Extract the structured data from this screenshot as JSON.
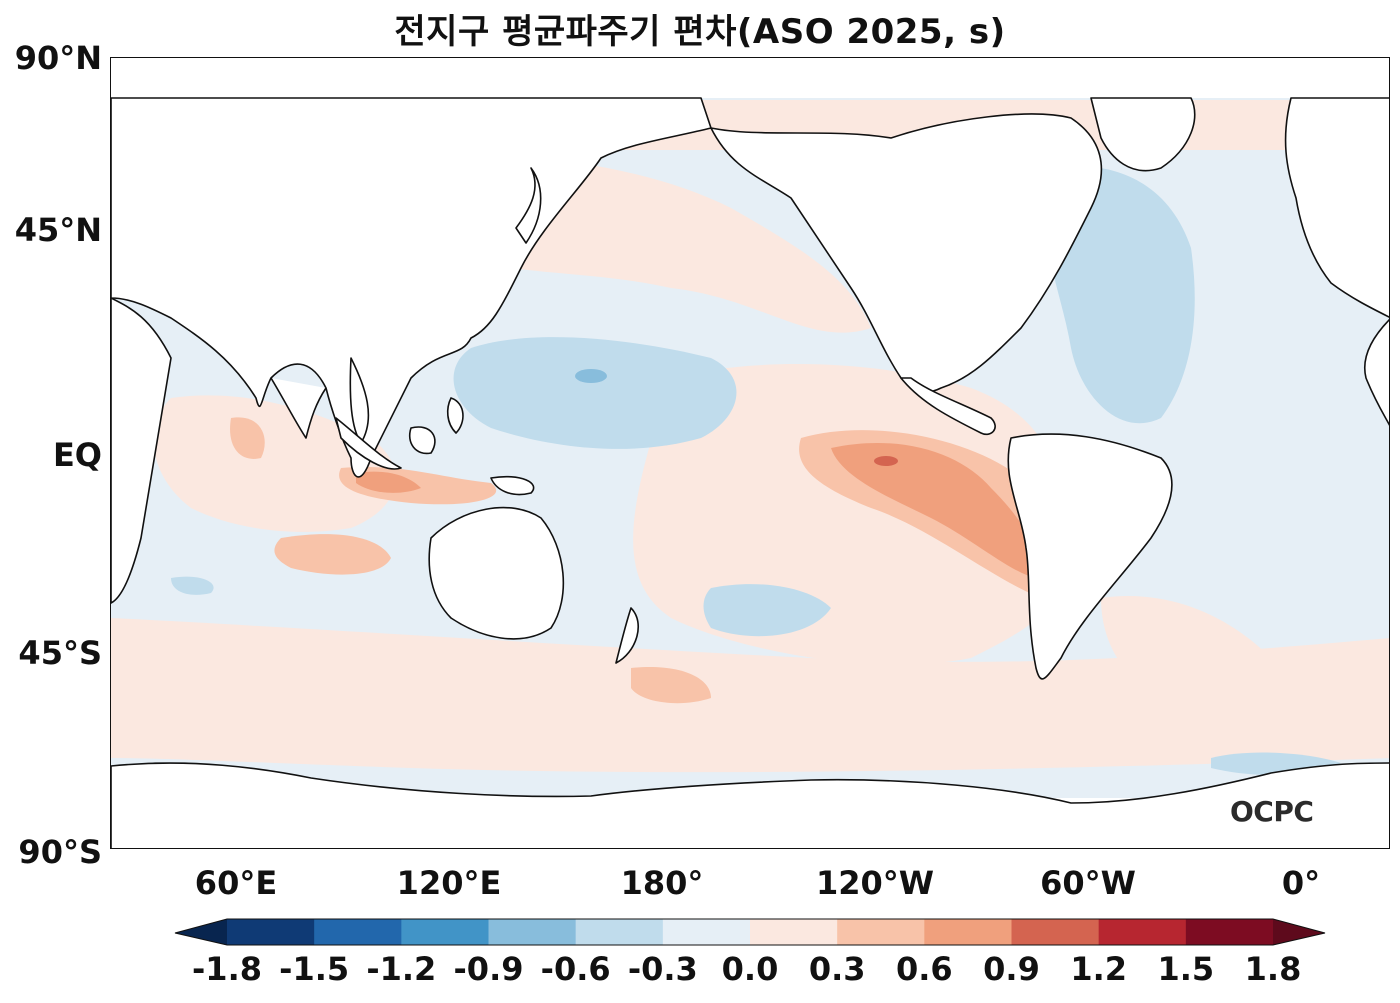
{
  "title": "전지구 평균파주기 편차(ASO 2025, s)",
  "logo_text": "OCPC",
  "map": {
    "y_ticks": [
      "90°N",
      "45°N",
      "EQ",
      "45°S",
      "90°S"
    ],
    "x_ticks": [
      "60°E",
      "120°E",
      "180°",
      "120°W",
      "60°W",
      "0°"
    ],
    "colors": {
      "land": "#ffffff",
      "coast": "#111111",
      "ocean_neutral_pos": "#fbe8e0",
      "ocean_neutral_neg": "#e6eff6"
    }
  },
  "colorbar": {
    "labels": [
      "-1.8",
      "-1.5",
      "-1.2",
      "-0.9",
      "-0.6",
      "-0.3",
      "0.0",
      "0.3",
      "0.6",
      "0.9",
      "1.2",
      "1.5",
      "1.8"
    ],
    "colors": [
      "#0f3a75",
      "#2267ac",
      "#4194c7",
      "#88bddc",
      "#c0dcec",
      "#e6eff6",
      "#fbe8e0",
      "#f8c3a9",
      "#f0a07d",
      "#d46450",
      "#b72630",
      "#7d0c22"
    ]
  }
}
